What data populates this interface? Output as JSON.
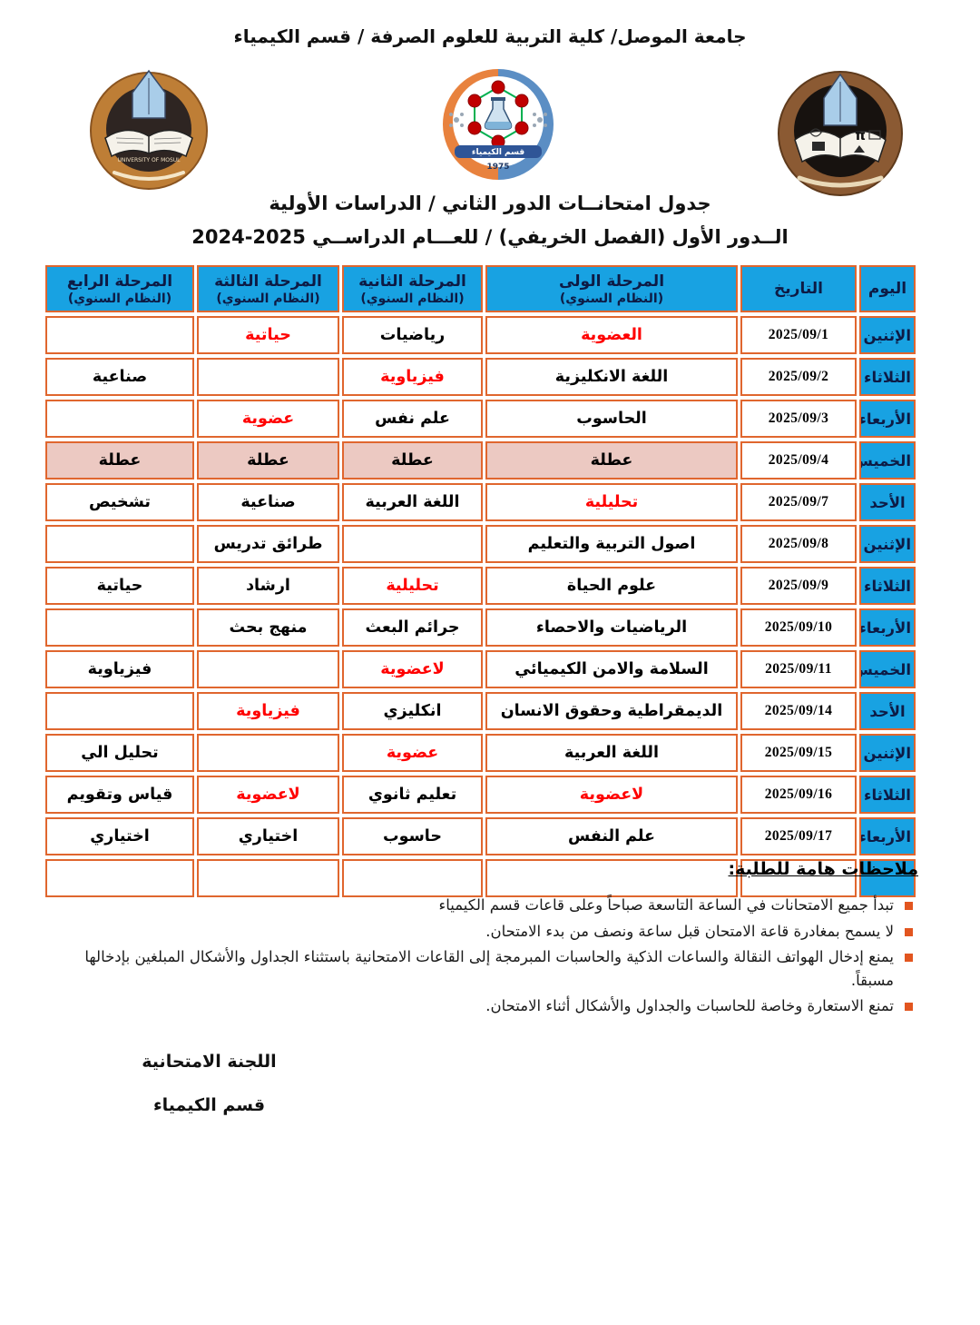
{
  "header": {
    "institution": "جامعة الموصل/ كلية التربية للعلوم الصرفة / قسم الكيمياء",
    "title_line1": "جدول امتحانــات الدور الثاني / الدراسات الأولية",
    "title_line2": "الــدور الأول (الفصل الخريفي) / للعـــام الدراســي 2025-2024"
  },
  "logos": {
    "left": {
      "name": "university-of-mosul-emblem",
      "ring_text": "UNIVERSITY OF MOSUL"
    },
    "center": {
      "name": "chemistry-department-emblem",
      "band_text": "قسم الكيمياء",
      "year": "1975"
    },
    "right": {
      "name": "college-of-education-pure-sciences-emblem",
      "pi": "π"
    }
  },
  "table": {
    "columns": [
      {
        "label": "اليوم",
        "sub": ""
      },
      {
        "label": "التاريخ",
        "sub": ""
      },
      {
        "label": "المرحلة الولى",
        "sub": "(النظام السنوي)"
      },
      {
        "label": "المرحلة الثانية",
        "sub": "(النظام السنوي)"
      },
      {
        "label": "المرحلة الثالثة",
        "sub": "(النظام السنوي)"
      },
      {
        "label": "المرحلة الرابع",
        "sub": "(النظام السنوي)"
      }
    ],
    "rows": [
      {
        "day": "الإثنين",
        "date": "2025/09/1",
        "subjects": [
          {
            "t": "العضوية",
            "red": true
          },
          {
            "t": "رياضيات"
          },
          {
            "t": "حياتية",
            "red": true
          },
          {
            "t": ""
          }
        ]
      },
      {
        "day": "الثلاثاء",
        "date": "2025/09/2",
        "subjects": [
          {
            "t": "اللغة الانكليزية"
          },
          {
            "t": "فيزياوية",
            "red": true
          },
          {
            "t": ""
          },
          {
            "t": "صناعية"
          }
        ]
      },
      {
        "day": "الأربعاء",
        "date": "2025/09/3",
        "subjects": [
          {
            "t": "الحاسوب"
          },
          {
            "t": "علم نفس"
          },
          {
            "t": "عضوية",
            "red": true
          },
          {
            "t": ""
          }
        ]
      },
      {
        "day": "الخميس",
        "date": "2025/09/4",
        "holiday": true,
        "subjects": [
          {
            "t": "عطلة"
          },
          {
            "t": "عطلة"
          },
          {
            "t": "عطلة"
          },
          {
            "t": "عطلة"
          }
        ]
      },
      {
        "day": "الأحد",
        "date": "2025/09/7",
        "subjects": [
          {
            "t": "تحليلية",
            "red": true
          },
          {
            "t": "اللغة العربية"
          },
          {
            "t": "صناعية"
          },
          {
            "t": "تشخيص"
          }
        ]
      },
      {
        "day": "الإثنين",
        "date": "2025/09/8",
        "subjects": [
          {
            "t": "اصول التربية والتعليم"
          },
          {
            "t": ""
          },
          {
            "t": "طرائق تدريس"
          },
          {
            "t": ""
          }
        ]
      },
      {
        "day": "الثلاثاء",
        "date": "2025/09/9",
        "subjects": [
          {
            "t": "علوم الحياة"
          },
          {
            "t": "تحليلية",
            "red": true
          },
          {
            "t": "ارشاد"
          },
          {
            "t": "حياتية"
          }
        ]
      },
      {
        "day": "الأربعاء",
        "date": "2025/09/10",
        "subjects": [
          {
            "t": "الرياضيات والاحصاء"
          },
          {
            "t": "جرائم البعث"
          },
          {
            "t": "منهج بحث"
          },
          {
            "t": ""
          }
        ]
      },
      {
        "day": "الخميس",
        "date": "2025/09/11",
        "subjects": [
          {
            "t": "السلامة والامن الكيميائي"
          },
          {
            "t": "لاعضوية",
            "red": true
          },
          {
            "t": ""
          },
          {
            "t": "فيزياوية"
          }
        ]
      },
      {
        "day": "الأحد",
        "date": "2025/09/14",
        "subjects": [
          {
            "t": "الديمقراطية وحقوق الانسان"
          },
          {
            "t": "انكليزي"
          },
          {
            "t": "فيزياوية",
            "red": true
          },
          {
            "t": ""
          }
        ]
      },
      {
        "day": "الإثنين",
        "date": "2025/09/15",
        "subjects": [
          {
            "t": "اللغة العربية"
          },
          {
            "t": "عضوية",
            "red": true
          },
          {
            "t": ""
          },
          {
            "t": "تحليل الي"
          }
        ]
      },
      {
        "day": "الثلاثاء",
        "date": "2025/09/16",
        "subjects": [
          {
            "t": "لاعضوية",
            "red": true
          },
          {
            "t": "تعليم ثانوي"
          },
          {
            "t": "لاعضوية",
            "red": true
          },
          {
            "t": "قياس وتقويم"
          }
        ]
      },
      {
        "day": "الأربعاء",
        "date": "2025/09/17",
        "subjects": [
          {
            "t": "علم النفس"
          },
          {
            "t": "حاسوب"
          },
          {
            "t": "اختياري"
          },
          {
            "t": "اختياري"
          }
        ]
      },
      {
        "day": "",
        "date": "",
        "subjects": [
          {
            "t": ""
          },
          {
            "t": ""
          },
          {
            "t": ""
          },
          {
            "t": ""
          }
        ]
      }
    ]
  },
  "notes": {
    "heading": "ملاحظات هامة للطلبة:",
    "items": [
      "تبدأ جميع الامتحانات في الساعة التاسعة صباحاً وعلى قاعات قسم الكيمياء",
      "لا يسمح بمغادرة قاعة الامتحان قبل ساعة ونصف من بدء الامتحان.",
      "يمنع إدخال الهواتف النقالة والساعات الذكية والحاسبات المبرمجة إلى القاعات الامتحانية باستثناء الجداول والأشكال المبلغين بإدخالها مسبقاً.",
      "تمنع الاستعارة وخاصة للحاسبات والجداول والأشكال أثناء الامتحان."
    ]
  },
  "signature": {
    "line1": "اللجنة الامتحانية",
    "line2": "قسم الكيمياء"
  },
  "colors": {
    "header_blue": "#18A2E2",
    "border_orange": "#E0662E",
    "holiday_pink": "#ECC9C2",
    "red_text": "#FF0000",
    "bullet_orange": "#E2551F"
  }
}
